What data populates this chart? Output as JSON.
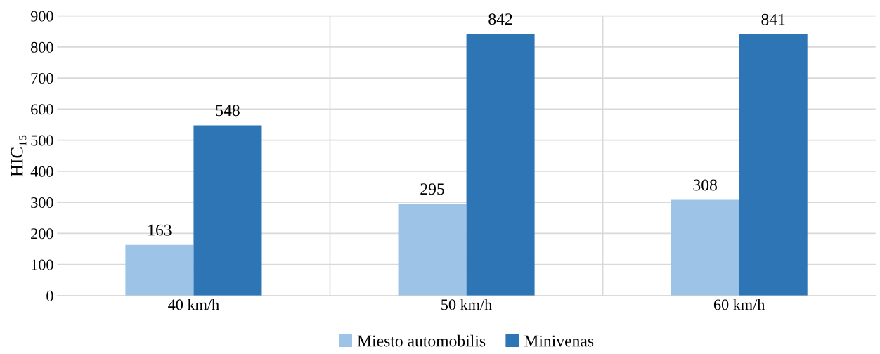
{
  "chart_data": {
    "type": "bar",
    "ylabel": "HIC₁₅",
    "categories": [
      "40 km/h",
      "50 km/h",
      "60 km/h"
    ],
    "series": [
      {
        "name": "Miesto automobilis",
        "color": "#9dc3e6",
        "values": [
          163,
          295,
          308
        ]
      },
      {
        "name": "Minivenas",
        "color": "#2e75b6",
        "values": [
          548,
          842,
          841
        ]
      }
    ],
    "ylim": [
      0,
      900
    ],
    "yticks": [
      0,
      100,
      200,
      300,
      400,
      500,
      600,
      700,
      800,
      900
    ],
    "grid": true,
    "legend": "bottom",
    "data_labels": true
  }
}
